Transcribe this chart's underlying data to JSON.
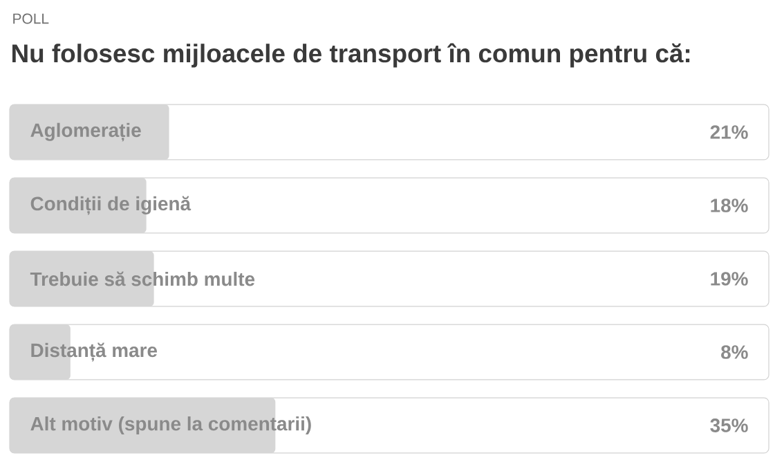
{
  "chart_data": {
    "type": "bar",
    "orientation": "horizontal",
    "subtitle": "POLL",
    "title": "Nu folosesc mijloacele de transport în comun pentru că:",
    "categories": [
      "Aglomerație",
      "Condiții de igienă",
      "Trebuie să schimb multe",
      "Distanță mare",
      "Alt motiv (spune la comentarii)"
    ],
    "values": [
      21,
      18,
      19,
      8,
      35
    ],
    "value_labels": [
      "21%",
      "18%",
      "19%",
      "8%",
      "35%"
    ],
    "color": "#d6d6d6",
    "xlim": [
      0,
      100
    ]
  }
}
